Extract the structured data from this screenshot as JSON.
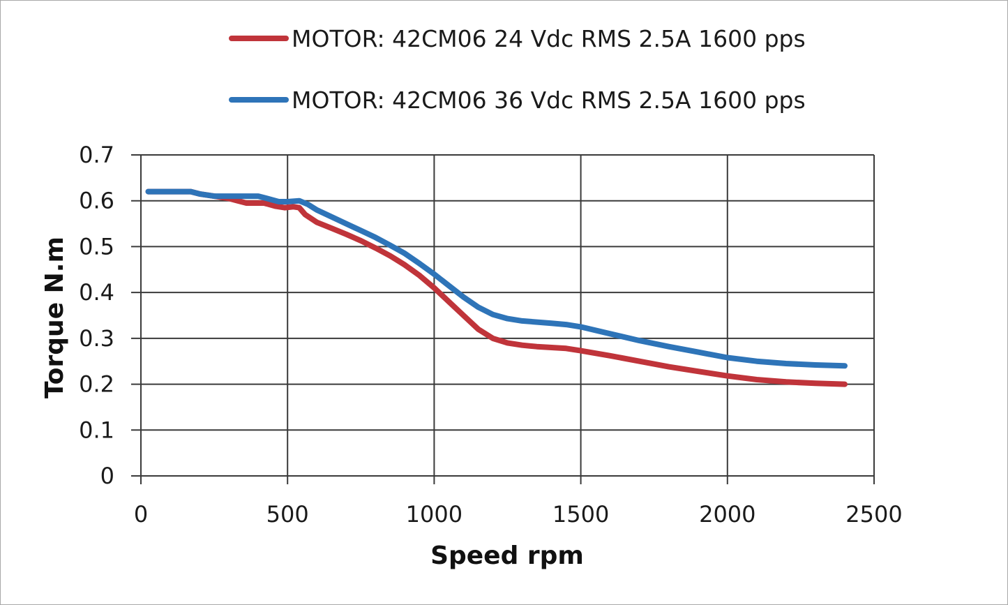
{
  "chart_data": {
    "type": "line",
    "title": "",
    "xlabel": "Speed rpm",
    "ylabel": "Torque N.m",
    "xlim": [
      0,
      2500
    ],
    "ylim": [
      0,
      0.7
    ],
    "xticks": [
      0,
      500,
      1000,
      1500,
      2000,
      2500
    ],
    "yticks": [
      0,
      0.1,
      0.2,
      0.3,
      0.4,
      0.5,
      0.6,
      0.7
    ],
    "xtick_labels": [
      "0",
      "500",
      "1000",
      "1500",
      "2000",
      "2500"
    ],
    "ytick_labels": [
      "0",
      "0.1",
      "0.2",
      "0.3",
      "0.4",
      "0.5",
      "0.6",
      "0.7"
    ],
    "grid": true,
    "legend_position": "top-center",
    "series": [
      {
        "name": "MOTOR: 42CM06 24 Vdc  RMS 2.5A 1600 pps",
        "color": "#c0343a",
        "points": [
          [
            25,
            0.62
          ],
          [
            100,
            0.62
          ],
          [
            150,
            0.62
          ],
          [
            170,
            0.62
          ],
          [
            200,
            0.615
          ],
          [
            250,
            0.61
          ],
          [
            300,
            0.605
          ],
          [
            330,
            0.6
          ],
          [
            360,
            0.595
          ],
          [
            420,
            0.595
          ],
          [
            460,
            0.588
          ],
          [
            490,
            0.585
          ],
          [
            520,
            0.587
          ],
          [
            540,
            0.585
          ],
          [
            560,
            0.57
          ],
          [
            600,
            0.553
          ],
          [
            650,
            0.54
          ],
          [
            700,
            0.527
          ],
          [
            750,
            0.513
          ],
          [
            800,
            0.497
          ],
          [
            850,
            0.48
          ],
          [
            900,
            0.46
          ],
          [
            950,
            0.437
          ],
          [
            1000,
            0.41
          ],
          [
            1050,
            0.38
          ],
          [
            1100,
            0.35
          ],
          [
            1150,
            0.32
          ],
          [
            1200,
            0.3
          ],
          [
            1250,
            0.29
          ],
          [
            1300,
            0.285
          ],
          [
            1350,
            0.282
          ],
          [
            1400,
            0.28
          ],
          [
            1450,
            0.278
          ],
          [
            1500,
            0.273
          ],
          [
            1600,
            0.262
          ],
          [
            1700,
            0.25
          ],
          [
            1800,
            0.238
          ],
          [
            1900,
            0.228
          ],
          [
            2000,
            0.218
          ],
          [
            2100,
            0.21
          ],
          [
            2200,
            0.205
          ],
          [
            2300,
            0.202
          ],
          [
            2400,
            0.2
          ]
        ]
      },
      {
        "name": "MOTOR: 42CM06 36 Vdc  RMS 2.5A 1600 pps",
        "color": "#2e74b8",
        "points": [
          [
            25,
            0.62
          ],
          [
            100,
            0.62
          ],
          [
            150,
            0.62
          ],
          [
            170,
            0.62
          ],
          [
            200,
            0.615
          ],
          [
            250,
            0.61
          ],
          [
            300,
            0.61
          ],
          [
            350,
            0.61
          ],
          [
            400,
            0.61
          ],
          [
            430,
            0.605
          ],
          [
            470,
            0.598
          ],
          [
            500,
            0.598
          ],
          [
            540,
            0.6
          ],
          [
            570,
            0.592
          ],
          [
            600,
            0.58
          ],
          [
            650,
            0.565
          ],
          [
            700,
            0.55
          ],
          [
            750,
            0.535
          ],
          [
            800,
            0.52
          ],
          [
            850,
            0.503
          ],
          [
            900,
            0.485
          ],
          [
            950,
            0.463
          ],
          [
            1000,
            0.44
          ],
          [
            1050,
            0.415
          ],
          [
            1100,
            0.39
          ],
          [
            1150,
            0.368
          ],
          [
            1200,
            0.352
          ],
          [
            1250,
            0.343
          ],
          [
            1300,
            0.338
          ],
          [
            1400,
            0.333
          ],
          [
            1450,
            0.33
          ],
          [
            1500,
            0.325
          ],
          [
            1600,
            0.31
          ],
          [
            1700,
            0.295
          ],
          [
            1800,
            0.282
          ],
          [
            1900,
            0.27
          ],
          [
            2000,
            0.258
          ],
          [
            2100,
            0.25
          ],
          [
            2200,
            0.245
          ],
          [
            2300,
            0.242
          ],
          [
            2400,
            0.24
          ]
        ]
      }
    ]
  }
}
